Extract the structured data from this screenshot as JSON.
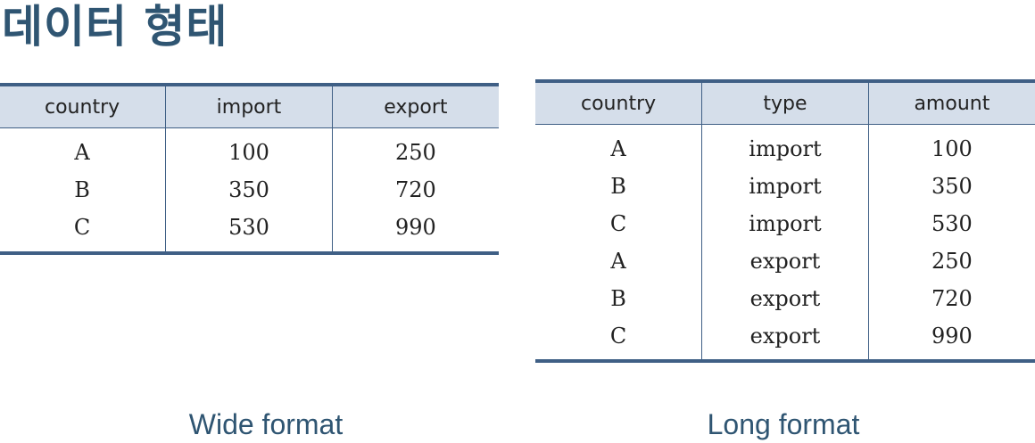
{
  "title": "데이터 형태",
  "wide_table": {
    "headers": [
      "country",
      "import",
      "export"
    ],
    "rows": [
      [
        "A",
        "100",
        "250"
      ],
      [
        "B",
        "350",
        "720"
      ],
      [
        "C",
        "530",
        "990"
      ]
    ],
    "caption": "Wide format"
  },
  "long_table": {
    "headers": [
      "country",
      "type",
      "amount"
    ],
    "rows": [
      [
        "A",
        "import",
        "100"
      ],
      [
        "B",
        "import",
        "350"
      ],
      [
        "C",
        "import",
        "530"
      ],
      [
        "A",
        "export",
        "250"
      ],
      [
        "B",
        "export",
        "720"
      ],
      [
        "C",
        "export",
        "990"
      ]
    ],
    "caption": "Long format"
  },
  "colors": {
    "title": "#2f5572",
    "table_rule": "#3f5f85",
    "header_fill": "#d5deea"
  }
}
